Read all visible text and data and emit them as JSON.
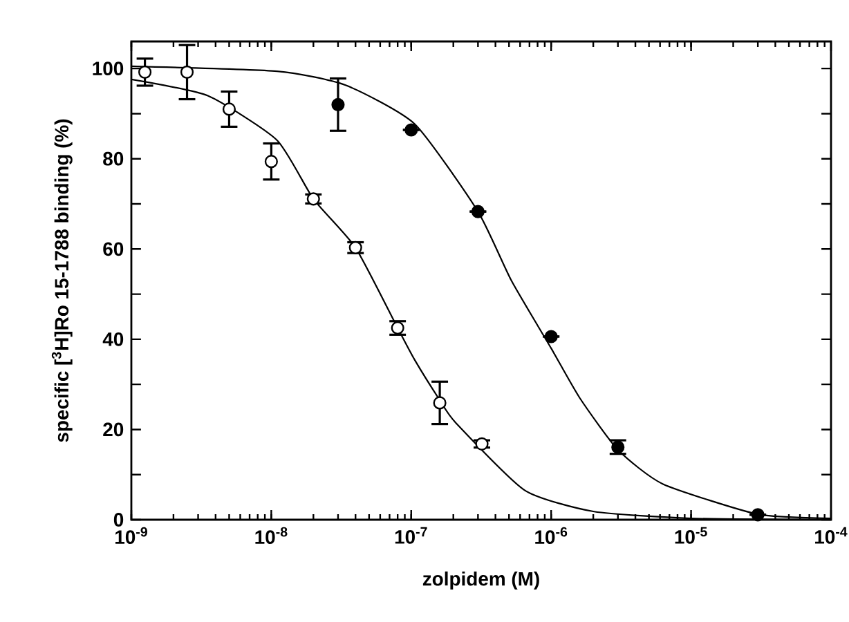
{
  "chart_data": {
    "type": "scatter",
    "xlabel": "zolpidem (M)",
    "ylabel": "specific [$^{3}$H]Ro 15-1788 binding (%)",
    "log": "x",
    "marker": "circle",
    "xlim": [
      1e-09,
      0.0001
    ],
    "ylim": [
      0,
      106
    ],
    "xticks": [
      {
        "value": 1e-09,
        "label": "10$^{-9}$"
      },
      {
        "value": 1e-08,
        "label": "10$^{-8}$"
      },
      {
        "value": 1e-07,
        "label": "10$^{-7}$"
      },
      {
        "value": 1e-06,
        "label": "10$^{-6}$"
      },
      {
        "value": 1e-05,
        "label": "10$^{-5}$"
      },
      {
        "value": 0.0001,
        "label": "10$^{-4}$"
      }
    ],
    "yticks": [
      0,
      {
        "value": 10,
        "label": null
      },
      20,
      {
        "value": 30,
        "label": null
      },
      40,
      {
        "value": 50,
        "label": null
      },
      60,
      {
        "value": 70,
        "label": null
      },
      80,
      {
        "value": 90,
        "label": null
      },
      100
    ],
    "series": [
      {
        "type": "line",
        "color": "#000000",
        "marker": "none",
        "x": [
          1e-09,
          3.5e-09,
          1.1e-08,
          2e-08,
          4e-08,
          8e-08,
          1.06e-07,
          1.6e-07,
          2.08e-07,
          6.5e-07,
          2.03e-06,
          1e-05,
          0.0001
        ],
        "values": [
          97.6,
          94.0,
          84.1,
          71.1,
          60.3,
          42.5,
          35.4,
          26.5,
          21.5,
          6.5,
          1.8,
          0.3,
          0
        ]
      },
      {
        "type": "line",
        "color": "#000000",
        "marker": "none",
        "x": [
          1e-09,
          1.1e-08,
          3.4e-08,
          1.06e-07,
          3e-07,
          5.2e-07,
          1e-06,
          1.6e-06,
          3e-06,
          6.3e-06,
          3e-05,
          0.0001
        ],
        "values": [
          100.5,
          99.4,
          96.3,
          87.7,
          68.3,
          53,
          38,
          27,
          15.5,
          7.9,
          1.2,
          0.3
        ]
      },
      {
        "color": "#ffffff",
        "x": [
          1.25e-09,
          2.5e-09,
          5e-09,
          1e-08,
          2e-08,
          4e-08,
          8e-08,
          1.6e-07,
          3.2e-07
        ],
        "values": [
          99.2,
          99.2,
          91.0,
          79.4,
          71.1,
          60.3,
          42.5,
          25.9,
          16.8
        ],
        "errors": [
          3,
          6,
          3.9,
          4,
          1,
          1.2,
          1.5,
          4.7,
          0.8
        ]
      },
      {
        "color": "#000000",
        "x": [
          3e-08,
          1e-07,
          3e-07,
          1e-06,
          3e-06,
          3e-05
        ],
        "values": [
          92.0,
          86.4,
          68.3,
          40.6,
          16.1,
          1.1
        ],
        "errors": [
          5.8,
          null,
          null,
          null,
          1.5,
          null
        ]
      }
    ]
  }
}
